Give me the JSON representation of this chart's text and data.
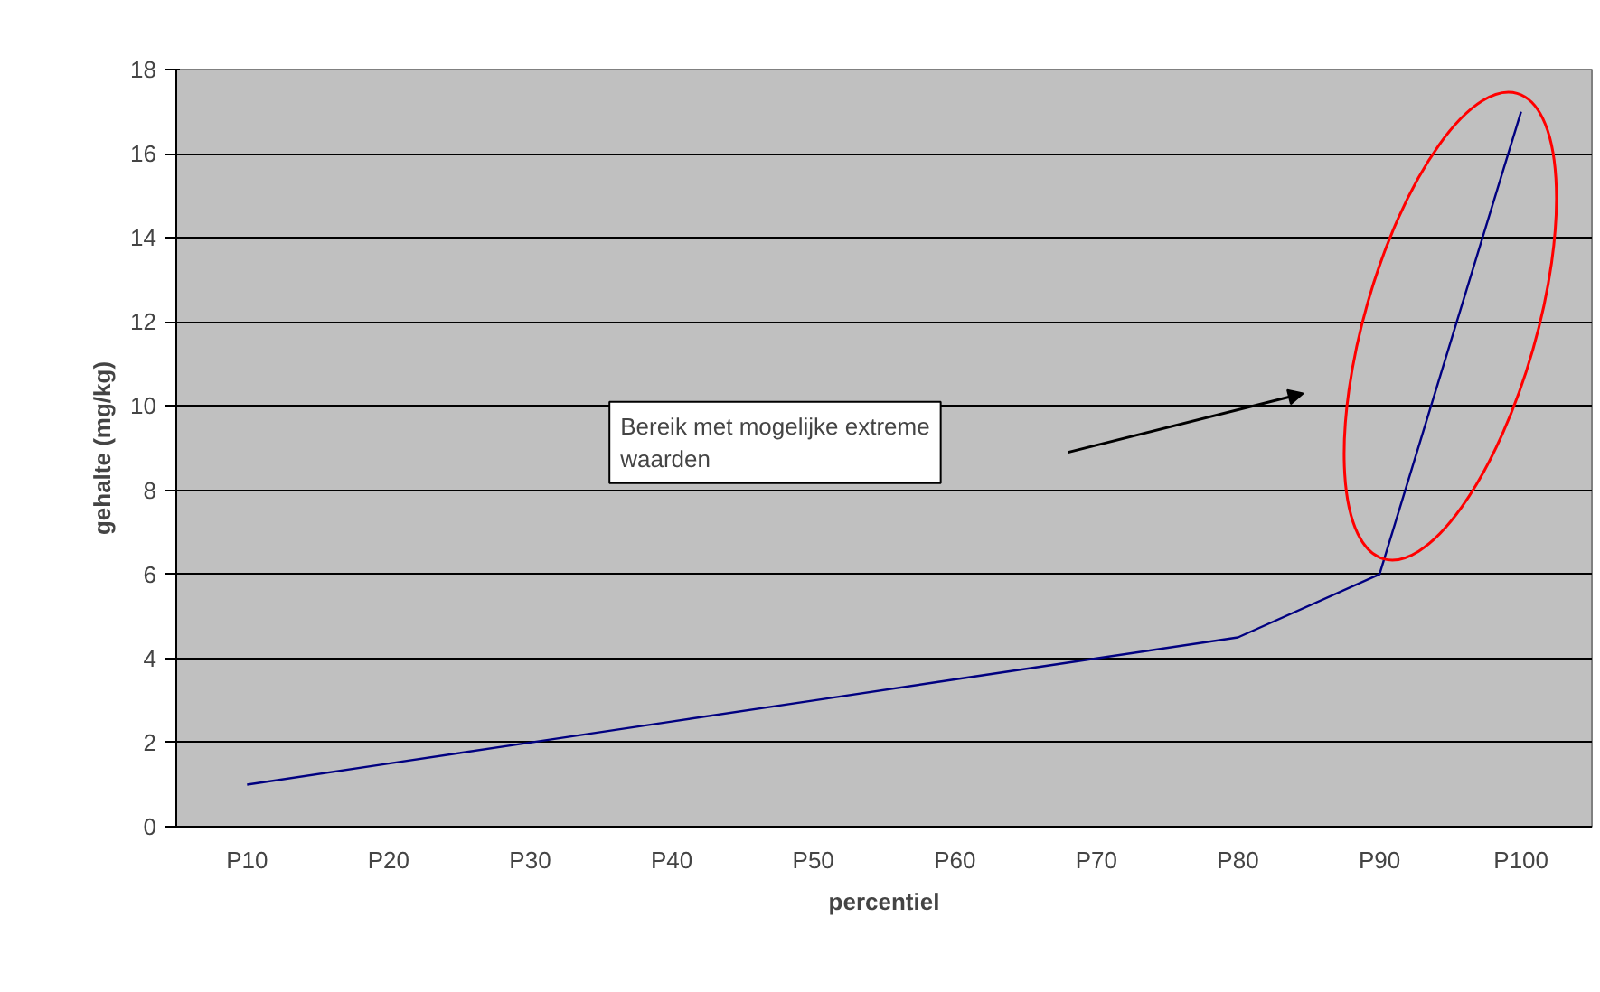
{
  "chart_data": {
    "type": "line",
    "xlabel": "percentiel",
    "ylabel": "gehalte (mg/kg)",
    "categories": [
      "P10",
      "P20",
      "P30",
      "P40",
      "P50",
      "P60",
      "P70",
      "P80",
      "P90",
      "P100"
    ],
    "series": [
      {
        "color": "#000080",
        "values": [
          1,
          1.5,
          2,
          2.5,
          3,
          3.5,
          4,
          4.5,
          6,
          17
        ]
      }
    ],
    "ylim": [
      0,
      18
    ],
    "yticks": [
      0,
      2,
      4,
      6,
      8,
      10,
      12,
      14,
      16,
      18
    ],
    "grid": "y",
    "marker": "none",
    "line_style": "solid",
    "annotations": [
      "Bereik met mogelijke extreme waarden"
    ]
  }
}
